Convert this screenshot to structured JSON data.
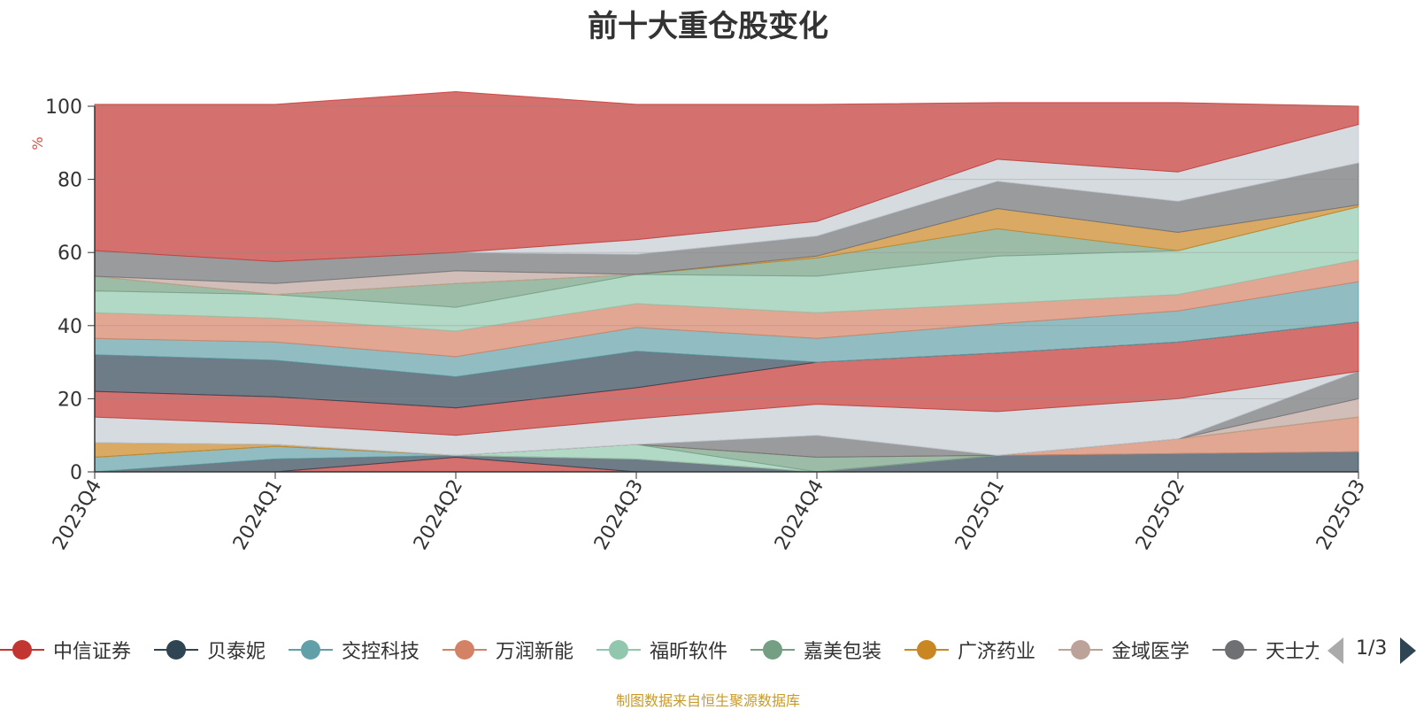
{
  "chart_data": {
    "type": "area",
    "title": "前十大重仓股变化",
    "ylabel": "%",
    "ylim": [
      0,
      100
    ],
    "yticks": [
      "0",
      "20",
      "40",
      "60",
      "80",
      "100"
    ],
    "grid": true,
    "stacked": true,
    "categories": [
      "2023Q4",
      "2024Q1",
      "2024Q2",
      "2024Q3",
      "2024Q4",
      "2025Q1",
      "2025Q2",
      "2025Q3"
    ],
    "series": [
      {
        "name": "中信证券",
        "color": "#c23531",
        "values": [
          0,
          0,
          4,
          0,
          0,
          0,
          0,
          0
        ]
      },
      {
        "name": "贝泰妮",
        "color": "#2f4554",
        "values": [
          0,
          3.5,
          0.5,
          3.5,
          0,
          4.5,
          5,
          5.5
        ]
      },
      {
        "name": "交控科技",
        "color": "#61a0a8",
        "values": [
          4,
          3.5,
          0,
          0,
          0,
          0,
          0,
          0
        ]
      },
      {
        "name": "万润新能",
        "color": "#d48265",
        "values": [
          0,
          0,
          0,
          0,
          0,
          0,
          4,
          9.5
        ]
      },
      {
        "name": "福昕软件",
        "color": "#91c7ae",
        "values": [
          0,
          0,
          0,
          4,
          0,
          0,
          0,
          0
        ]
      },
      {
        "name": "嘉美包装",
        "color": "#749f83",
        "values": [
          0,
          0,
          0,
          0,
          4,
          0,
          0,
          0
        ]
      },
      {
        "name": "广济药业",
        "color": "#ca8622",
        "values": [
          4,
          0.5,
          0,
          0,
          0,
          0,
          0,
          0
        ]
      },
      {
        "name": "金域医学",
        "color": "#bda29a",
        "values": [
          0,
          0,
          0,
          0,
          0,
          0,
          0,
          5
        ]
      },
      {
        "name": "天士力",
        "color": "#6e7074",
        "values": [
          0,
          0,
          0,
          0,
          6,
          0,
          0,
          7.5
        ]
      },
      {
        "name": "",
        "color": "#c4ccd3",
        "values": [
          7,
          5.5,
          5.5,
          7,
          8.5,
          12,
          11,
          0
        ]
      },
      {
        "name": "",
        "color": "#c23531",
        "values": [
          7,
          7.5,
          7.5,
          8.5,
          11.5,
          16,
          15.5,
          13.5
        ]
      },
      {
        "name": "",
        "color": "#2f4554",
        "values": [
          10,
          10,
          8.5,
          10,
          0,
          0,
          0,
          0
        ]
      },
      {
        "name": "",
        "color": "#61a0a8",
        "values": [
          4.5,
          5,
          5.5,
          6.5,
          6.5,
          8,
          8.5,
          11
        ]
      },
      {
        "name": "",
        "color": "#d48265",
        "values": [
          7,
          6.5,
          7,
          6.5,
          7,
          5.5,
          4.5,
          6
        ]
      },
      {
        "name": "",
        "color": "#91c7ae",
        "values": [
          6,
          6.5,
          6.5,
          8,
          10,
          13,
          12,
          14.5
        ]
      },
      {
        "name": "",
        "color": "#749f83",
        "values": [
          4,
          0,
          6.5,
          0,
          5,
          7.5,
          0,
          0
        ]
      },
      {
        "name": "",
        "color": "#ca8622",
        "values": [
          0,
          0,
          0,
          0,
          0.5,
          5.5,
          5,
          0.5
        ]
      },
      {
        "name": "",
        "color": "#bda29a",
        "values": [
          0,
          3,
          3.5,
          0,
          0,
          0,
          0,
          0
        ]
      },
      {
        "name": "",
        "color": "#6e7074",
        "values": [
          7,
          6,
          5,
          5.5,
          5.5,
          7.5,
          8.5,
          11.5
        ]
      },
      {
        "name": "",
        "color": "#c4ccd3",
        "values": [
          0,
          0,
          0,
          4,
          4,
          6,
          8,
          10.5
        ]
      },
      {
        "name": "",
        "color": "#c23531",
        "values": [
          40,
          43,
          44,
          37,
          32,
          15.5,
          19,
          5
        ]
      }
    ]
  },
  "legend": {
    "items": [
      {
        "name": "中信证券",
        "color": "#c23531"
      },
      {
        "name": "贝泰妮",
        "color": "#2f4554"
      },
      {
        "name": "交控科技",
        "color": "#61a0a8"
      },
      {
        "name": "万润新能",
        "color": "#d48265"
      },
      {
        "name": "福昕软件",
        "color": "#91c7ae"
      },
      {
        "name": "嘉美包装",
        "color": "#749f83"
      },
      {
        "name": "广济药业",
        "color": "#ca8622"
      },
      {
        "name": "金域医学",
        "color": "#bda29a"
      },
      {
        "name": "天士力",
        "color": "#6e7074"
      }
    ],
    "page_label": "1/3"
  },
  "footer": {
    "source": "制图数据来自恒生聚源数据库"
  }
}
